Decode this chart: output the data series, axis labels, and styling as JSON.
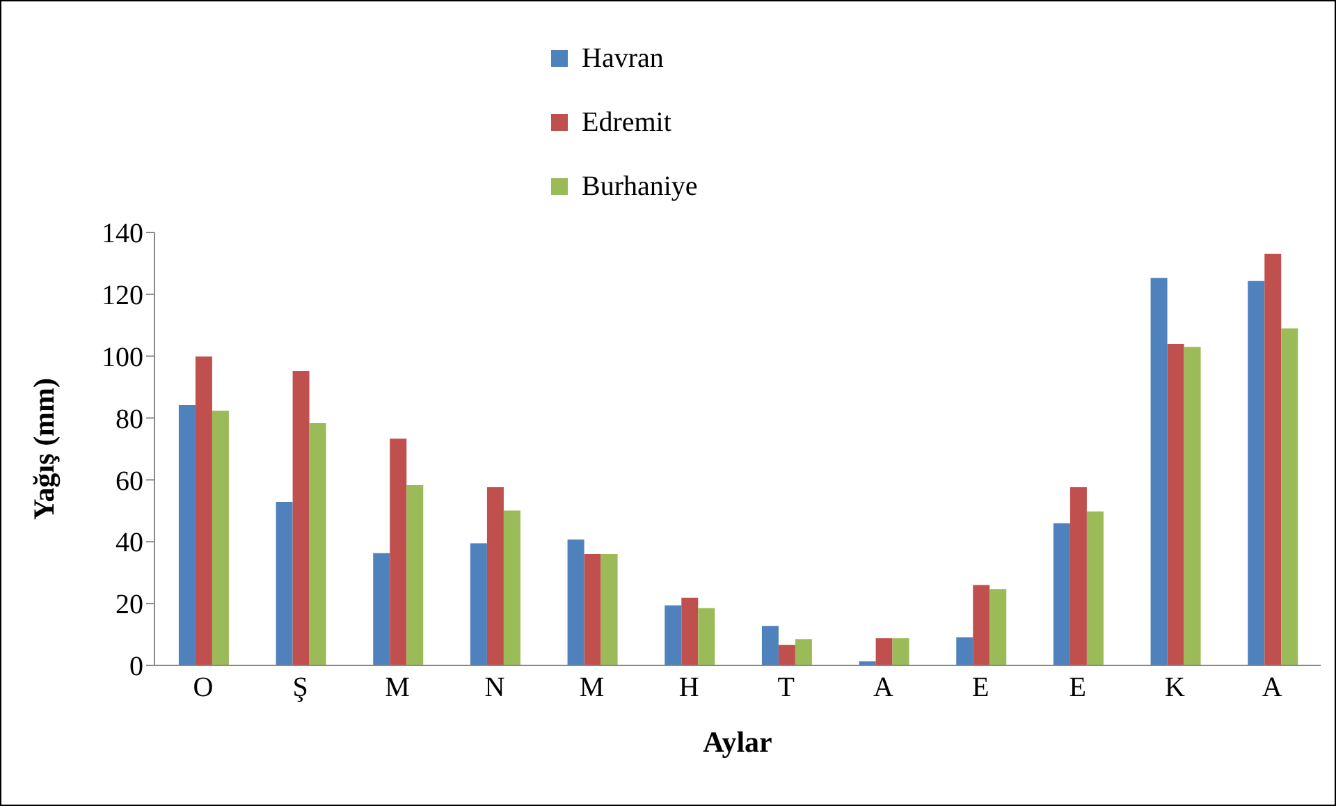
{
  "chart_data": {
    "type": "bar",
    "xlabel": "Aylar",
    "ylabel": "Yağış (mm)",
    "categories": [
      "O",
      "Ş",
      "M",
      "N",
      "M",
      "H",
      "T",
      "A",
      "E",
      "E",
      "K",
      "A"
    ],
    "series": [
      {
        "name": "Havran",
        "color": "#4f81bd",
        "values": [
          84.2,
          52.9,
          36.3,
          39.5,
          40.7,
          19.4,
          12.8,
          1.3,
          9.1,
          46.0,
          125.3,
          124.3
        ]
      },
      {
        "name": "Edremit",
        "color": "#c0504d",
        "values": [
          99.9,
          95.2,
          73.3,
          57.6,
          36.0,
          21.9,
          6.6,
          8.8,
          26.0,
          57.6,
          104.0,
          133.1
        ]
      },
      {
        "name": "Burhaniye",
        "color": "#9bbb59",
        "values": [
          82.4,
          78.3,
          58.3,
          50.1,
          36.0,
          18.5,
          8.5,
          8.8,
          24.7,
          49.8,
          103.0,
          109.0
        ]
      }
    ],
    "ylim": [
      0,
      140
    ],
    "yticks": [
      0,
      20,
      40,
      60,
      80,
      100,
      120,
      140
    ],
    "grid": false,
    "legend": "top"
  }
}
